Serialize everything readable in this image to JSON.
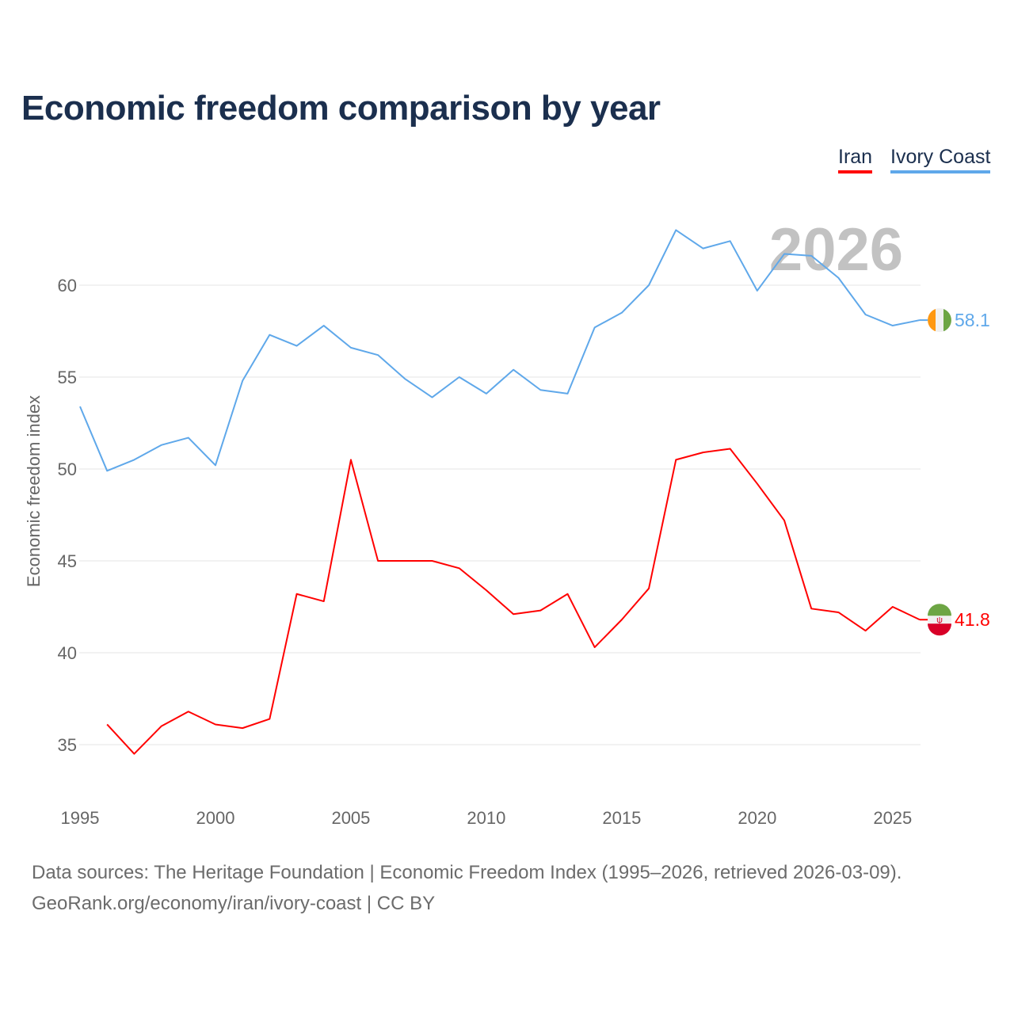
{
  "title": "Economic freedom comparison by year",
  "legend": [
    {
      "label": "Iran",
      "color": "#ff0000"
    },
    {
      "label": "Ivory Coast",
      "color": "#5fa8ea"
    }
  ],
  "watermark_year": "2026",
  "sources": [
    "Data sources: The Heritage Foundation | Economic Freedom Index (1995–2026, retrieved 2026-03-09).",
    "GeoRank.org/economy/iran/ivory-coast | CC BY"
  ],
  "chart_data": {
    "type": "line",
    "title": "Economic freedom comparison by year",
    "xlabel": "",
    "ylabel": "Economic freedom index",
    "xlim": [
      1995,
      2026
    ],
    "ylim": [
      33,
      64
    ],
    "yticks": [
      35,
      40,
      45,
      50,
      55,
      60
    ],
    "xticks": [
      1995,
      2000,
      2005,
      2010,
      2015,
      2020,
      2025
    ],
    "grid": true,
    "legend_position": "top-right",
    "series": [
      {
        "name": "Iran",
        "color": "#ff0000",
        "end_label": "41.8",
        "x": [
          1996,
          1997,
          1998,
          1999,
          2000,
          2001,
          2002,
          2003,
          2004,
          2005,
          2006,
          2007,
          2008,
          2009,
          2010,
          2011,
          2012,
          2013,
          2014,
          2015,
          2016,
          2017,
          2018,
          2019,
          2020,
          2021,
          2022,
          2023,
          2024,
          2025,
          2026
        ],
        "values": [
          36.1,
          34.5,
          36.0,
          36.8,
          36.1,
          35.9,
          36.4,
          43.2,
          42.8,
          50.5,
          45.0,
          45.0,
          45.0,
          44.6,
          43.4,
          42.1,
          42.3,
          43.2,
          40.3,
          41.8,
          43.5,
          50.5,
          50.9,
          51.1,
          49.2,
          47.2,
          42.4,
          42.2,
          41.2,
          42.5,
          41.8
        ]
      },
      {
        "name": "Ivory Coast",
        "color": "#5fa8ea",
        "end_label": "58.1",
        "x": [
          1995,
          1996,
          1997,
          1998,
          1999,
          2000,
          2001,
          2002,
          2003,
          2004,
          2005,
          2006,
          2007,
          2008,
          2009,
          2010,
          2011,
          2012,
          2013,
          2014,
          2015,
          2016,
          2017,
          2018,
          2019,
          2020,
          2021,
          2022,
          2023,
          2024,
          2025,
          2026
        ],
        "values": [
          53.4,
          49.9,
          50.5,
          51.3,
          51.7,
          50.2,
          54.8,
          57.3,
          56.7,
          57.8,
          56.6,
          56.2,
          54.9,
          53.9,
          55.0,
          54.1,
          55.4,
          54.3,
          54.1,
          57.7,
          58.5,
          60.0,
          63.0,
          62.0,
          62.4,
          59.7,
          61.7,
          61.6,
          60.4,
          58.4,
          57.8,
          58.1
        ]
      }
    ]
  }
}
